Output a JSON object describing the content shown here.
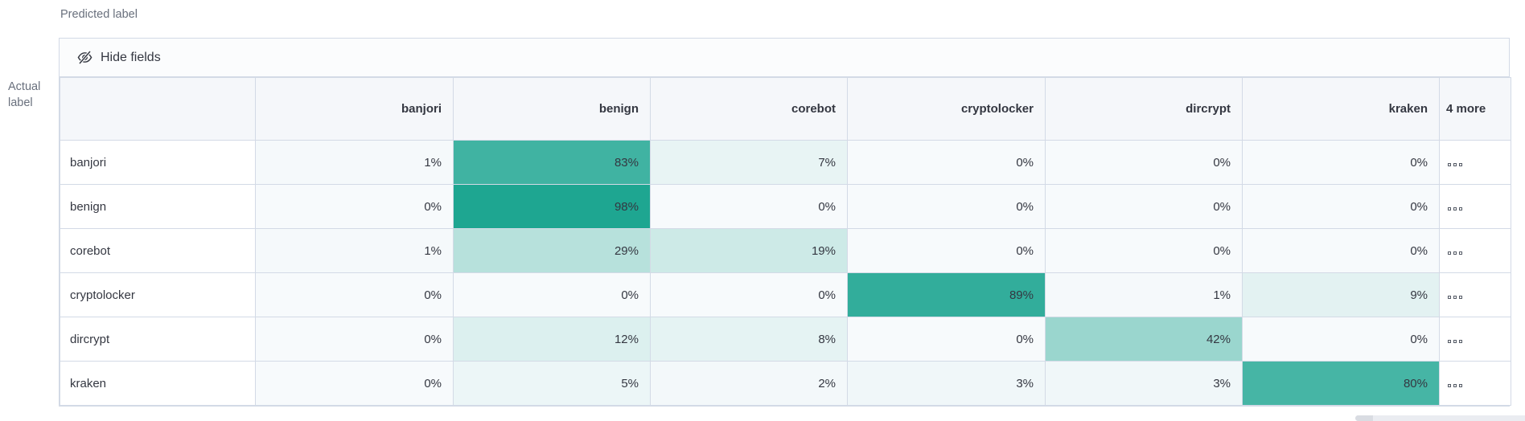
{
  "axis": {
    "predicted_label": "Predicted label",
    "actual_label_line1": "Actual",
    "actual_label_line2": "label"
  },
  "toolbar": {
    "hide_fields_label": "Hide fields",
    "hide_fields_icon": "eye-slash-icon"
  },
  "matrix": {
    "columns": [
      "banjori",
      "benign",
      "corebot",
      "cryptolocker",
      "dircrypt",
      "kraken"
    ],
    "more_column_label": "4 more",
    "more_cell_icon": "boxes-horizontal-icon",
    "rows": [
      {
        "label": "banjori",
        "cells": [
          "1%",
          "83%",
          "7%",
          "0%",
          "0%",
          "0%"
        ]
      },
      {
        "label": "benign",
        "cells": [
          "0%",
          "98%",
          "0%",
          "0%",
          "0%",
          "0%"
        ]
      },
      {
        "label": "corebot",
        "cells": [
          "1%",
          "29%",
          "19%",
          "0%",
          "0%",
          "0%"
        ]
      },
      {
        "label": "cryptolocker",
        "cells": [
          "0%",
          "0%",
          "0%",
          "89%",
          "1%",
          "9%"
        ]
      },
      {
        "label": "dircrypt",
        "cells": [
          "0%",
          "12%",
          "8%",
          "0%",
          "42%",
          "0%"
        ]
      },
      {
        "label": "kraken",
        "cells": [
          "0%",
          "5%",
          "2%",
          "3%",
          "3%",
          "80%"
        ]
      }
    ]
  },
  "colors": {
    "heat_zero": "#f7fafc",
    "heat_full": "#1aa48f",
    "border": "#d3dae6",
    "header_bg": "#f5f7fa",
    "text_dark": "#343741",
    "text_gray": "#69707d"
  }
}
